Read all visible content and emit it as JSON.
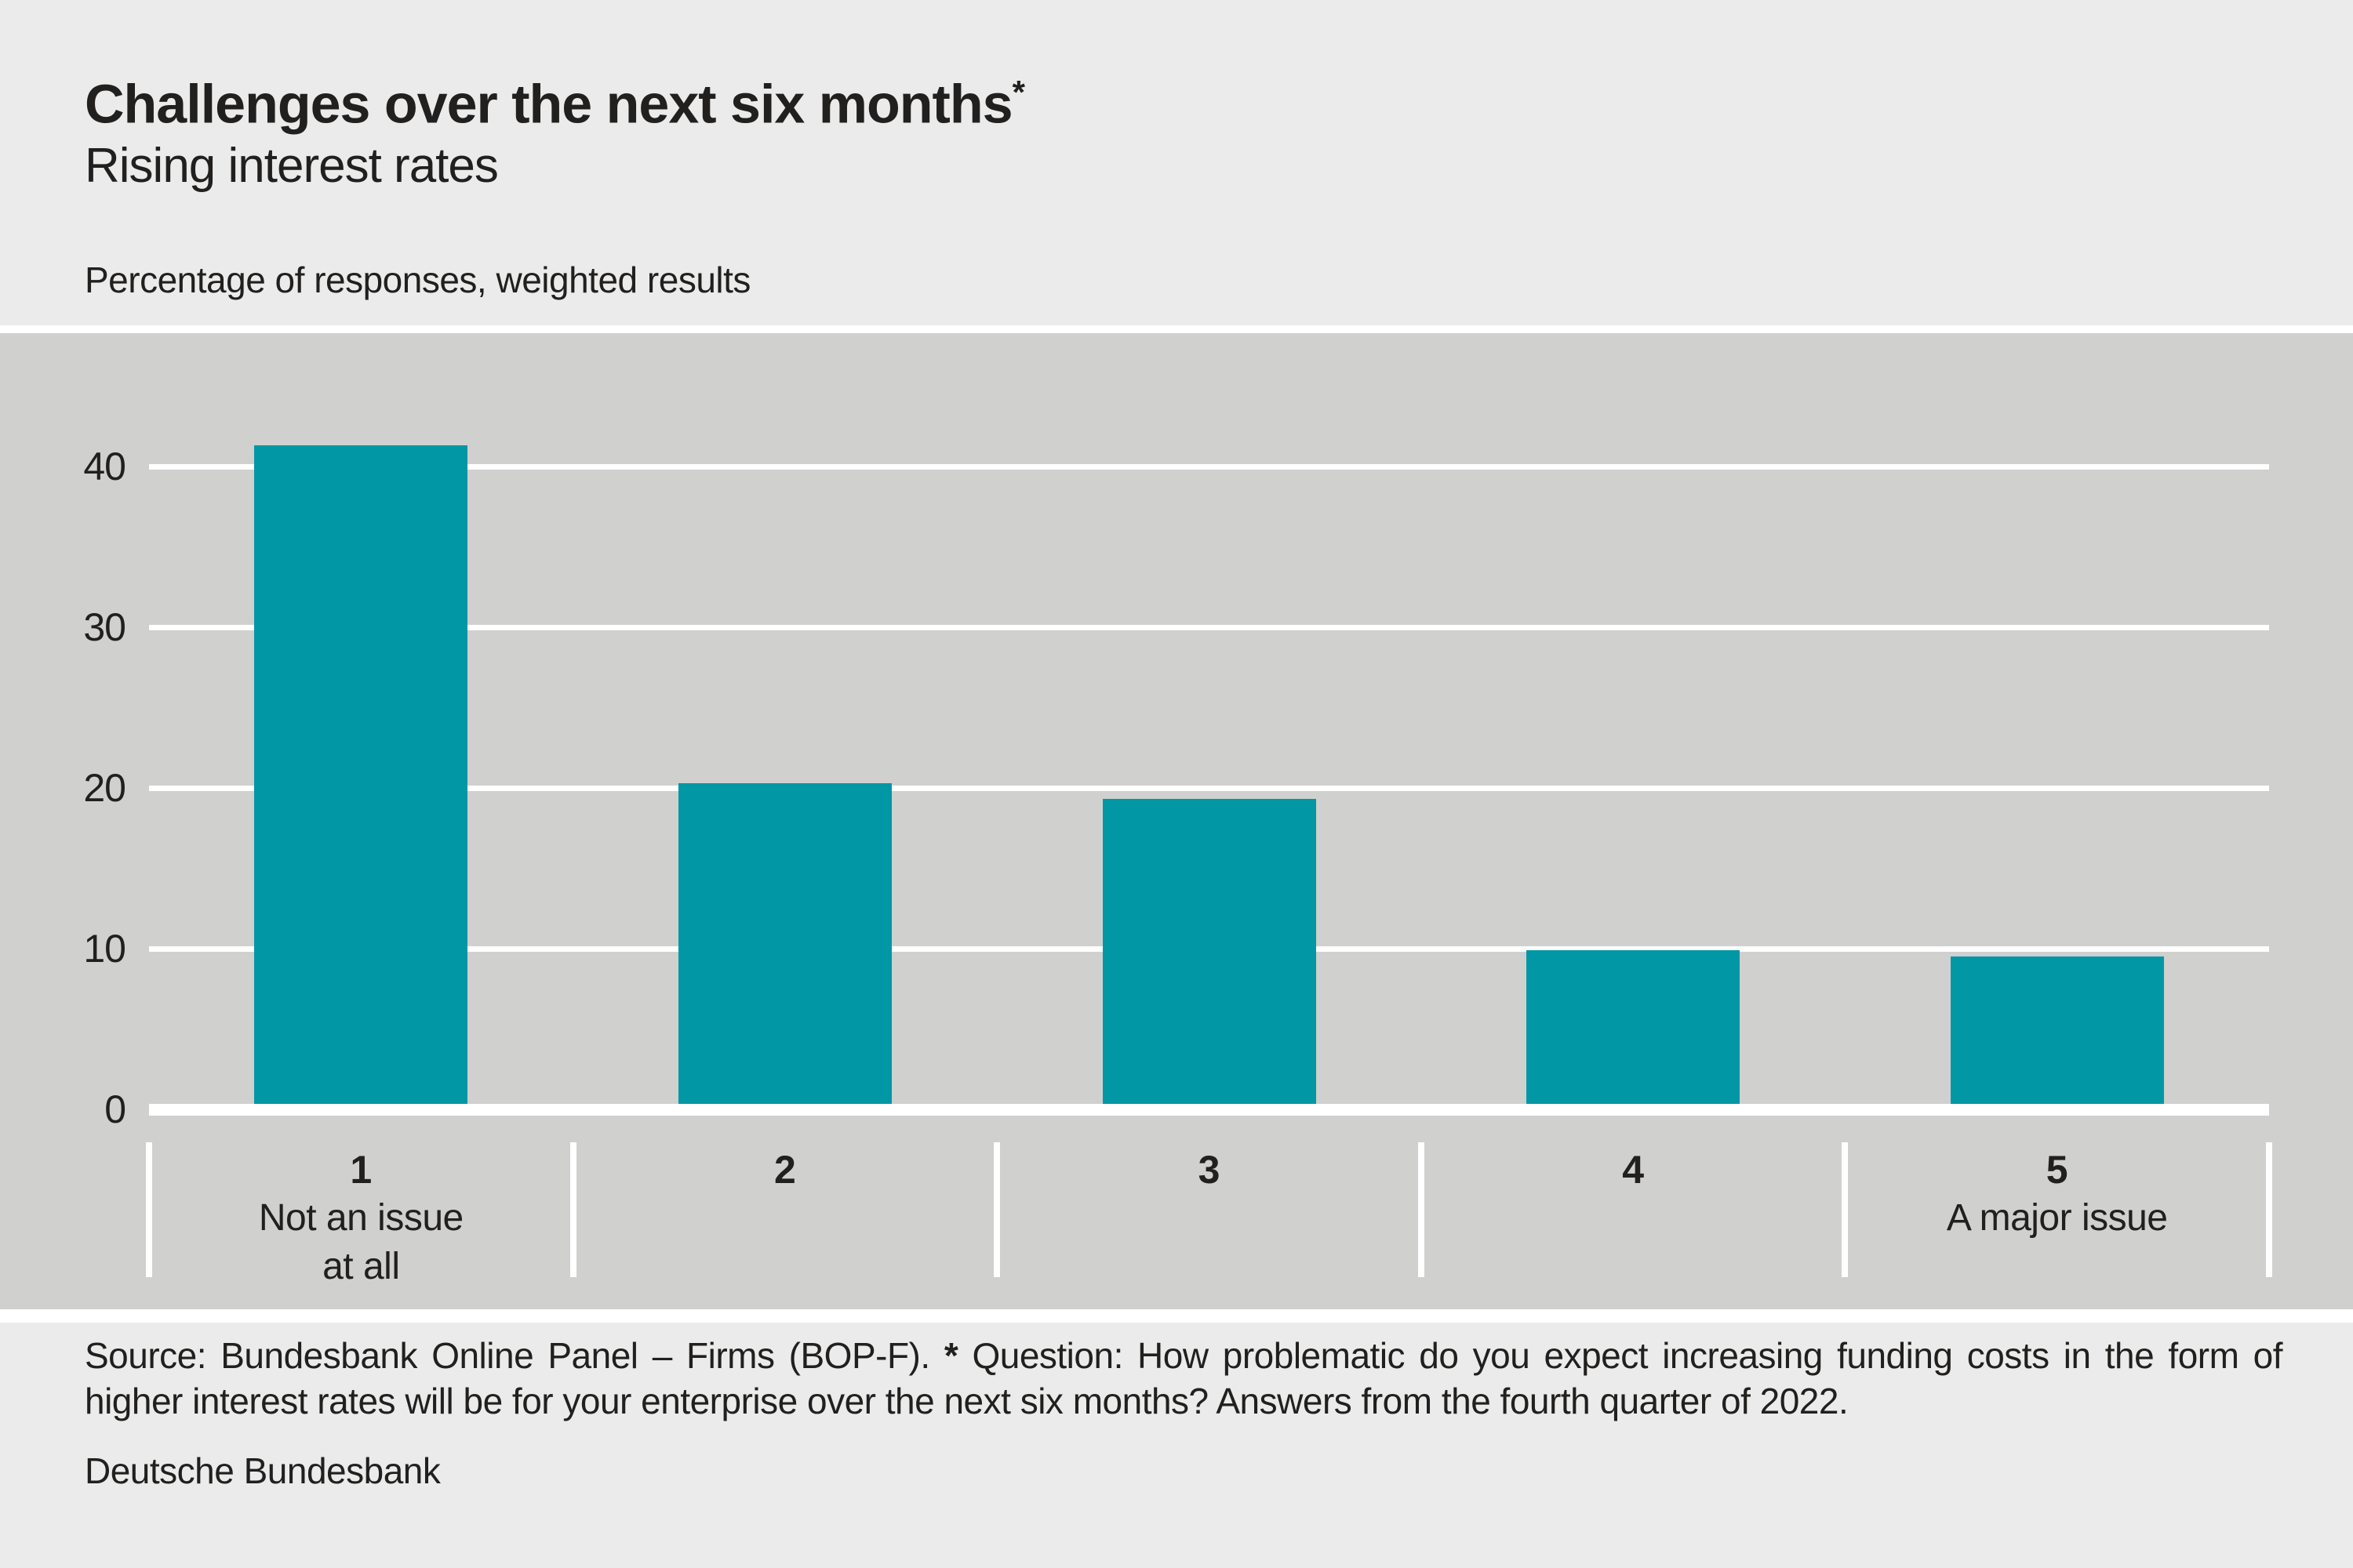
{
  "header": {
    "title": "Challenges over the next six months",
    "title_footnote_marker": "*",
    "subtitle": "Rising interest rates",
    "unit_label": "Percentage of responses, weighted results"
  },
  "chart_data": {
    "type": "bar",
    "title": "Challenges over the next six months*",
    "subtitle": "Rising interest rates",
    "ylabel": "Percentage of responses, weighted results",
    "categories": [
      "1",
      "2",
      "3",
      "4",
      "5"
    ],
    "category_captions": [
      [
        "Not an issue",
        "at all"
      ],
      [],
      [],
      [],
      [
        "A major issue"
      ]
    ],
    "values": [
      41.3,
      20.3,
      19.3,
      9.9,
      9.5
    ],
    "yticks": [
      0,
      10,
      20,
      30,
      40
    ],
    "ylim": [
      0,
      48
    ],
    "grid": "on",
    "legend": "none",
    "bar_color": "#0297a5",
    "grid_color": "#ffffff",
    "plot_bg": "#d0d0cf",
    "page_bg": "#ebebeb",
    "text_color": "#21201e"
  },
  "footer": {
    "source_prefix": "Source: Bundesbank Online Panel – Firms (BOP-F).",
    "footnote_marker": "*",
    "footnote_text": "Question: How problematic do you expect increasing funding costs in the form of higher interest rates will be for your enterprise over the next six months? Answers from the fourth quarter of 2022.",
    "publisher": "Deutsche Bundesbank"
  }
}
